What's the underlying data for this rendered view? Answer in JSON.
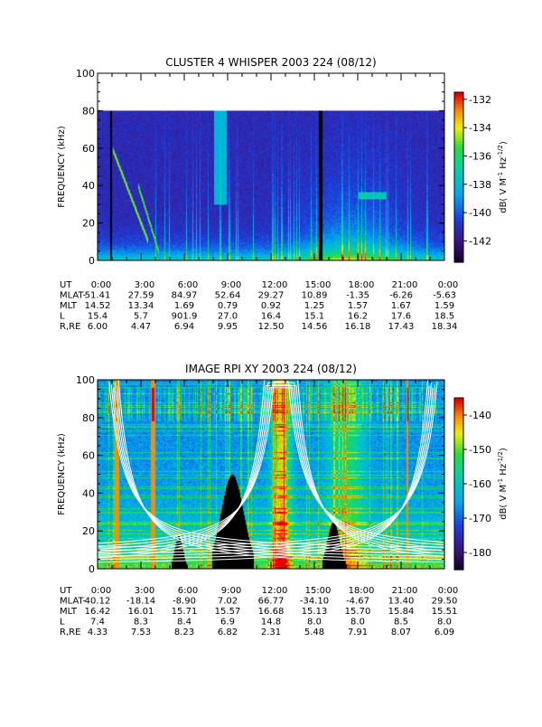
{
  "chart_data": [
    {
      "type": "heatmap",
      "title": "CLUSTER 4 WHISPER 2003 224 (08/12)",
      "ylabel": "FREQUENCY (kHz)",
      "ylim": [
        0,
        100
      ],
      "data_fmax": 80,
      "yticks": [
        0,
        20,
        40,
        60,
        80,
        100
      ],
      "xlim": [
        0,
        24
      ],
      "xticks": [
        0,
        3,
        6,
        9,
        12,
        15,
        18,
        21,
        24
      ],
      "colorbar": {
        "label": "dB( V M⁻¹ Hz⁻¹ᐟ²)",
        "label_parts": [
          "dB( V M",
          "-1",
          " Hz",
          "-1/2",
          ")"
        ],
        "range": [
          -143.5,
          -131.5
        ],
        "ticks": [
          -132,
          -134,
          -136,
          -138,
          -140,
          -142
        ]
      },
      "ephemeris": {
        "UT": [
          "0:00",
          "3:00",
          "6:00",
          "9:00",
          "12:00",
          "15:00",
          "18:00",
          "21:00",
          "0:00"
        ],
        "MLAT-": [
          "51.41",
          "27.59",
          "84.97",
          "52.64",
          "29.27",
          "10.89",
          "-1.35",
          "-6.26",
          "-5.63"
        ],
        "MLT": [
          "14.52",
          "13.34",
          "1.69",
          "0.79",
          "0.92",
          "1.25",
          "1.57",
          "1.67",
          "1.59"
        ],
        "L": [
          "15.4",
          "5.7",
          "901.9",
          "27.0",
          "16.4",
          "15.1",
          "16.2",
          "17.6",
          "18.5"
        ],
        "R,RE": [
          "6.00",
          "4.47",
          "6.94",
          "9.95",
          "12.50",
          "14.56",
          "16.18",
          "17.43",
          "18.34"
        ]
      }
    },
    {
      "type": "heatmap",
      "title": "IMAGE RPI XY 2003 224 (08/12)",
      "ylabel": "FREQUENCY (kHz)",
      "ylim": [
        0,
        100
      ],
      "data_fmax": 100,
      "yticks": [
        0,
        20,
        40,
        60,
        80,
        100
      ],
      "xlim": [
        0,
        24
      ],
      "xticks": [
        0,
        3,
        6,
        9,
        12,
        15,
        18,
        21,
        24
      ],
      "colorbar": {
        "label": "dB( V M⁻¹ Hz⁻¹ᐟ²)",
        "label_parts": [
          "dB( V M",
          "-1",
          " Hz",
          "-1/2",
          ")"
        ],
        "range": [
          -185,
          -135
        ],
        "ticks": [
          -140,
          -150,
          -160,
          -170,
          -180
        ]
      },
      "ephemeris": {
        "UT": [
          "0:00",
          "3:00",
          "6:00",
          "9:00",
          "12:00",
          "15:00",
          "18:00",
          "21:00",
          "0:00"
        ],
        "MLAT-": [
          "40.12",
          "-18.14",
          "-8.90",
          "7.02",
          "66.77",
          "-34.10",
          "-4.67",
          "13.40",
          "29.50"
        ],
        "MLT": [
          "16.42",
          "16.01",
          "15.71",
          "15.57",
          "16.68",
          "15.13",
          "15.70",
          "15.84",
          "15.51"
        ],
        "L": [
          "7.4",
          "8.3",
          "8.4",
          "6.9",
          "14.8",
          "8.0",
          "8.0",
          "8.5",
          "8.0"
        ],
        "R,RE": [
          "4.33",
          "7.53",
          "8.23",
          "6.82",
          "2.31",
          "5.48",
          "7.91",
          "8.07",
          "6.09"
        ]
      }
    }
  ]
}
